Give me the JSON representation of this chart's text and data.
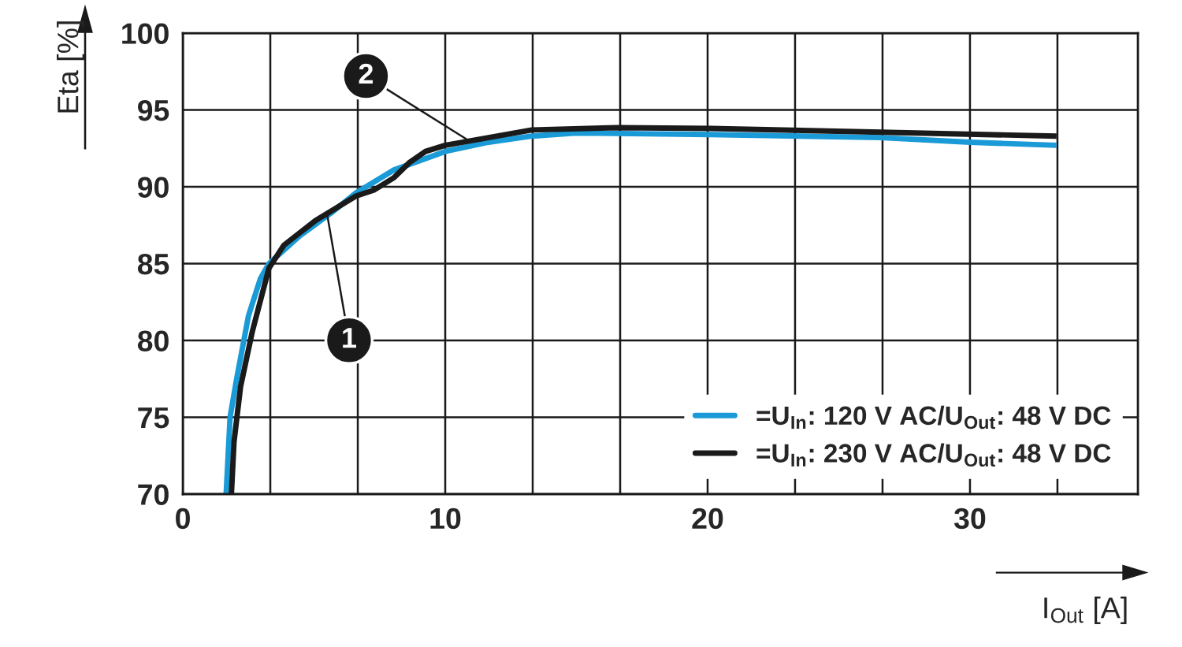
{
  "chart_data": {
    "type": "line",
    "xlabel": "I$_{Out}$ [A]",
    "ylabel": "Eta [%]",
    "xlim": [
      0,
      36.4
    ],
    "ylim": [
      70,
      100
    ],
    "xticks": [
      0,
      {
        "value": 3.333,
        "label": null
      },
      {
        "value": 6.667,
        "label": null
      },
      10,
      {
        "value": 13.333,
        "label": null
      },
      {
        "value": 16.667,
        "label": null
      },
      20,
      {
        "value": 23.333,
        "label": null
      },
      {
        "value": 26.667,
        "label": null
      },
      30,
      {
        "value": 33.333,
        "label": null
      }
    ],
    "yticks": [
      70,
      75,
      80,
      85,
      90,
      95,
      100
    ],
    "grid": true,
    "legend": "bottom right",
    "line_style": "solid",
    "series": [
      {
        "name": "=U$_{In}$: 120 V AC/U$_{Out}$: 48 V DC",
        "color": "#1a9ad6",
        "x": [
          1.65,
          1.8,
          2.05,
          2.5,
          2.95,
          3.28,
          4.45,
          5.65,
          6.6,
          8.05,
          10,
          11.65,
          13.3,
          15,
          20.1,
          26.6,
          30,
          33.3
        ],
        "values": [
          70,
          75,
          77.5,
          81.6,
          84,
          85,
          86.8,
          88.3,
          89.6,
          91.1,
          92.3,
          92.9,
          93.3,
          93.5,
          93.4,
          93.2,
          92.9,
          92.7
        ]
      },
      {
        "name": "=U$_{In}$: 230 V AC/U$_{Out}$: 48 V DC",
        "color": "#1a1a1a",
        "x": [
          1.85,
          1.95,
          2.2,
          2.65,
          3.28,
          3.85,
          5.05,
          6.6,
          7.3,
          8.05,
          8.65,
          9.25,
          10,
          11.65,
          13.3,
          16.6,
          20.1,
          26.6,
          33.3
        ],
        "values": [
          70,
          73.4,
          77,
          80.6,
          84.7,
          86.2,
          87.8,
          89.4,
          89.8,
          90.6,
          91.6,
          92.3,
          92.7,
          93.2,
          93.7,
          93.85,
          93.8,
          93.55,
          93.3
        ]
      }
    ],
    "annotations": [
      {
        "text": "1",
        "x": 5.5,
        "y": 88.2
      },
      {
        "text": "2",
        "x": 10.9,
        "y": 93.0
      }
    ]
  }
}
